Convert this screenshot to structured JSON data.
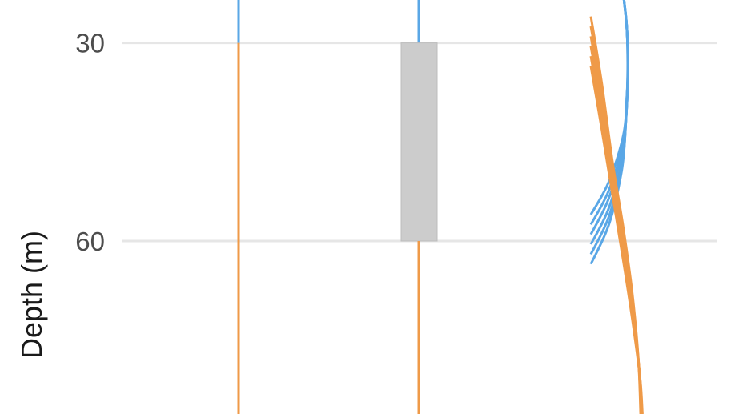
{
  "chart_data": {
    "type": "line",
    "title": "",
    "xlabel": "",
    "ylabel": "Depth (m)",
    "y_reversed": true,
    "ylim": [
      23.5,
      86.2
    ],
    "y_ticks": [
      30,
      60
    ],
    "y_tick_labels": [
      "30",
      "60"
    ],
    "grid": true,
    "legend": "none",
    "colors": {
      "upper": "#5aa7e6",
      "lower": "#ef9a48",
      "box": "#cccccc",
      "grid": "#e6e6e6"
    },
    "panels": [
      {
        "name": "step",
        "x": 0,
        "boundary_depth": 30,
        "upper_range": [
          23.5,
          30
        ],
        "lower_range": [
          30,
          86.2
        ]
      },
      {
        "name": "range",
        "x": 0,
        "interval": [
          30,
          60
        ],
        "upper_range": [
          23.5,
          30
        ],
        "lower_range": [
          60,
          86.2
        ]
      },
      {
        "name": "curves",
        "upper_curves": [
          {
            "points": [
              [
                0.92,
                23.5
              ],
              [
                1.0,
                28
              ],
              [
                1.03,
                33
              ],
              [
                1.0,
                38
              ],
              [
                0.9,
                44
              ],
              [
                0.5,
                51
              ],
              [
                0.0,
                56.0
              ]
            ]
          },
          {
            "points": [
              [
                0.92,
                23.5
              ],
              [
                1.0,
                28
              ],
              [
                1.03,
                33
              ],
              [
                0.99,
                39
              ],
              [
                0.9,
                45
              ],
              [
                0.5,
                52.3
              ],
              [
                0.0,
                57.5
              ]
            ]
          },
          {
            "points": [
              [
                0.92,
                23.5
              ],
              [
                1.0,
                28
              ],
              [
                1.03,
                34
              ],
              [
                0.99,
                40
              ],
              [
                0.88,
                46
              ],
              [
                0.5,
                53.5
              ],
              [
                0.0,
                59.0
              ]
            ]
          },
          {
            "points": [
              [
                0.92,
                23.5
              ],
              [
                1.0,
                28
              ],
              [
                1.03,
                34
              ],
              [
                0.98,
                41
              ],
              [
                0.87,
                47.5
              ],
              [
                0.5,
                55.0
              ],
              [
                0.0,
                60.5
              ]
            ]
          },
          {
            "points": [
              [
                0.92,
                23.5
              ],
              [
                1.0,
                28
              ],
              [
                1.02,
                35
              ],
              [
                0.97,
                42
              ],
              [
                0.86,
                48.5
              ],
              [
                0.5,
                56.3
              ],
              [
                0.0,
                62.0
              ]
            ]
          },
          {
            "points": [
              [
                0.92,
                23.5
              ],
              [
                1.0,
                28
              ],
              [
                1.02,
                35
              ],
              [
                0.96,
                43
              ],
              [
                0.85,
                49.5
              ],
              [
                0.5,
                57.5
              ],
              [
                0.0,
                63.5
              ]
            ]
          }
        ],
        "lower_curves": [
          {
            "points": [
              [
                0.0,
                26.0
              ],
              [
                0.3,
                36
              ],
              [
                0.6,
                48
              ],
              [
                0.9,
                58
              ],
              [
                1.15,
                68
              ],
              [
                1.32,
                78
              ],
              [
                1.38,
                86.2
              ]
            ]
          },
          {
            "points": [
              [
                0.0,
                27.5
              ],
              [
                0.3,
                37
              ],
              [
                0.6,
                49
              ],
              [
                0.9,
                59
              ],
              [
                1.15,
                69
              ],
              [
                1.33,
                79
              ],
              [
                1.39,
                86.2
              ]
            ]
          },
          {
            "points": [
              [
                0.0,
                29.0
              ],
              [
                0.3,
                38.5
              ],
              [
                0.6,
                50
              ],
              [
                0.9,
                60
              ],
              [
                1.16,
                70
              ],
              [
                1.34,
                79.5
              ],
              [
                1.4,
                86.2
              ]
            ]
          },
          {
            "points": [
              [
                0.0,
                30.5
              ],
              [
                0.3,
                40
              ],
              [
                0.6,
                51
              ],
              [
                0.9,
                61
              ],
              [
                1.17,
                71
              ],
              [
                1.35,
                80
              ],
              [
                1.41,
                86.2
              ]
            ]
          },
          {
            "points": [
              [
                0.0,
                32.0
              ],
              [
                0.3,
                41.5
              ],
              [
                0.6,
                52
              ],
              [
                0.9,
                62
              ],
              [
                1.18,
                72
              ],
              [
                1.36,
                80.5
              ],
              [
                1.42,
                86.2
              ]
            ]
          },
          {
            "points": [
              [
                0.0,
                33.5
              ],
              [
                0.3,
                43
              ],
              [
                0.6,
                53
              ],
              [
                0.9,
                63
              ],
              [
                1.18,
                73
              ],
              [
                1.37,
                81
              ],
              [
                1.43,
                86.2
              ]
            ]
          }
        ]
      }
    ]
  }
}
